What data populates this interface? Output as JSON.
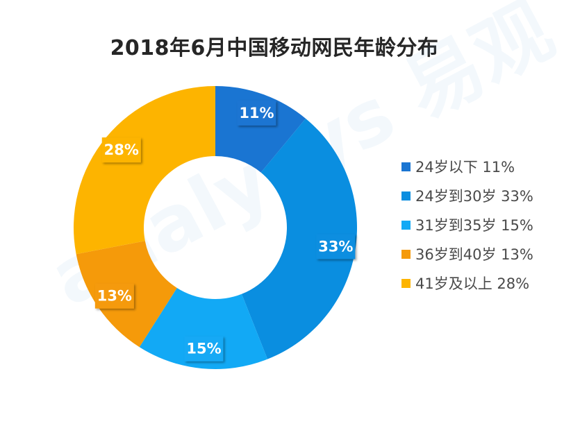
{
  "watermark_text": "analysys 易观",
  "chart_data": {
    "type": "pie",
    "title": "2018年6月中国移动网民年龄分布",
    "categories": [
      "24岁以下",
      "24岁到30岁",
      "31岁到35岁",
      "36岁到40岁",
      "41岁及以上"
    ],
    "values": [
      11,
      33,
      15,
      13,
      28
    ],
    "data_labels": [
      "11%",
      "33%",
      "15%",
      "13%",
      "28%"
    ],
    "legend_labels": [
      "24岁以下 11%",
      "24岁到30岁 33%",
      "31岁到35岁 15%",
      "36岁到40岁 13%",
      "41岁及以上 28%"
    ],
    "colors": [
      "#1a75d2",
      "#0a8ee0",
      "#12a9f5",
      "#f59a0a",
      "#fdb400"
    ],
    "hole": "donut",
    "legend_position": "right"
  }
}
